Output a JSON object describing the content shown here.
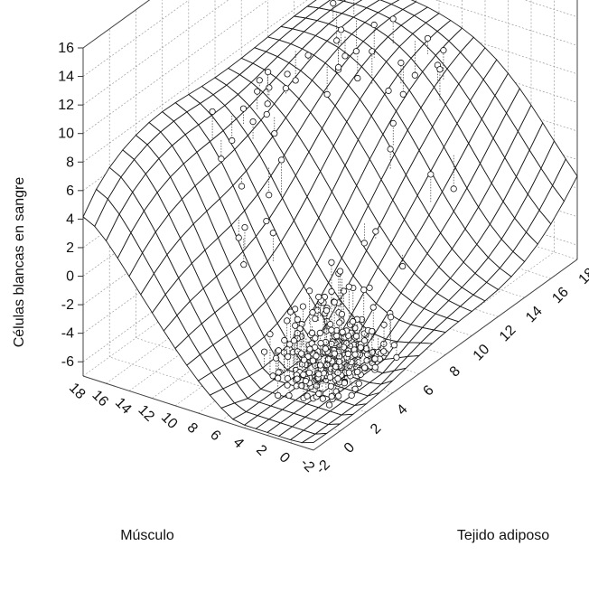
{
  "chart_data": {
    "type": "surface3d",
    "title": "",
    "xlabel": "Tejido adiposo",
    "ylabel": "Músculo",
    "zlabel": "Células blancas en sangre",
    "xlim": [
      -2,
      18
    ],
    "ylim": [
      -2,
      18
    ],
    "zlim": [
      -7,
      16
    ],
    "x_ticks": [
      "-2",
      "0",
      "2",
      "4",
      "6",
      "8",
      "10",
      "12",
      "14",
      "16",
      "18"
    ],
    "y_ticks": [
      "18",
      "16",
      "14",
      "12",
      "10",
      "8",
      "6",
      "4",
      "2",
      "0",
      "-2"
    ],
    "z_ticks": [
      "16",
      "14",
      "12",
      "10",
      "8",
      "6",
      "4",
      "2",
      "0",
      "-2",
      "-4",
      "-6"
    ],
    "grid": true,
    "colors": {
      "surface": "#1a1a1a",
      "grid": "#9a9a9a",
      "points": "#ffffff"
    }
  }
}
